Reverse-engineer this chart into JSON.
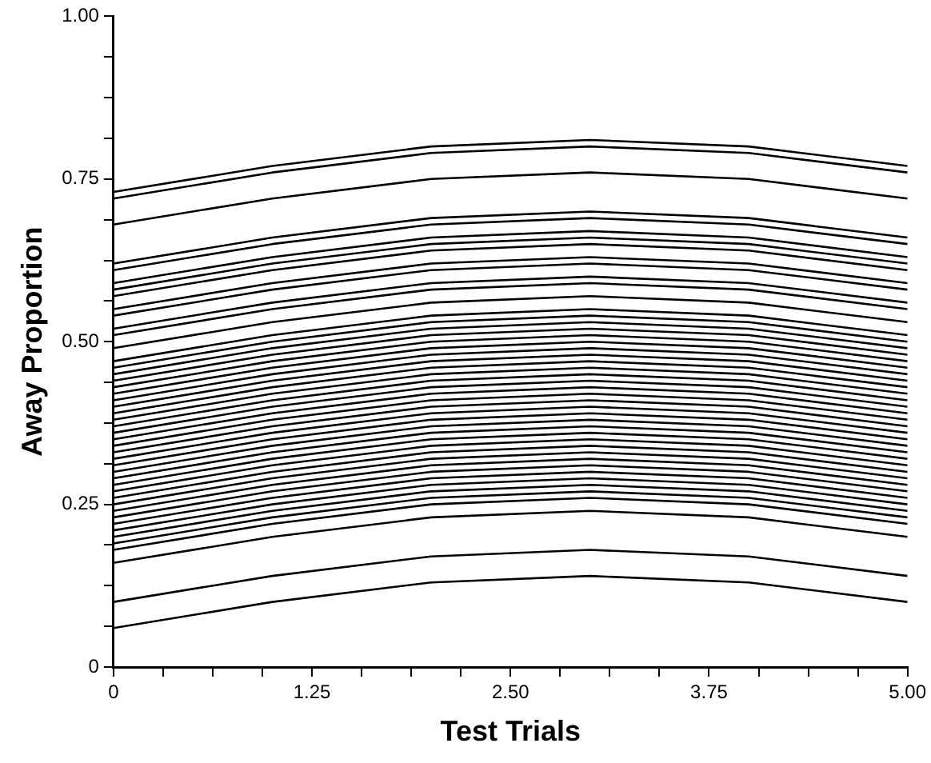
{
  "chart_data": {
    "type": "line",
    "xlabel": "Test Trials",
    "ylabel": "Away Proportion",
    "x": [
      0,
      1,
      2,
      3,
      4,
      5
    ],
    "xlim": [
      0,
      5
    ],
    "xticks": [
      {
        "value": 0,
        "label": "0"
      },
      {
        "value": 0.3125,
        "label": null
      },
      {
        "value": 0.625,
        "label": null
      },
      {
        "value": 0.9375,
        "label": null
      },
      {
        "value": 1.25,
        "label": "1.25"
      },
      {
        "value": 1.5625,
        "label": null
      },
      {
        "value": 1.875,
        "label": null
      },
      {
        "value": 2.1875,
        "label": null
      },
      {
        "value": 2.5,
        "label": "2.50"
      },
      {
        "value": 2.8125,
        "label": null
      },
      {
        "value": 3.125,
        "label": null
      },
      {
        "value": 3.4375,
        "label": null
      },
      {
        "value": 3.75,
        "label": "3.75"
      },
      {
        "value": 4.0625,
        "label": null
      },
      {
        "value": 4.375,
        "label": null
      },
      {
        "value": 4.6875,
        "label": null
      },
      {
        "value": 5,
        "label": "5.00"
      }
    ],
    "ylim": [
      0,
      1
    ],
    "yticks": [
      {
        "value": 0,
        "label": "0"
      },
      {
        "value": 0.0625,
        "label": null
      },
      {
        "value": 0.125,
        "label": null
      },
      {
        "value": 0.1875,
        "label": null
      },
      {
        "value": 0.25,
        "label": "0.25"
      },
      {
        "value": 0.3125,
        "label": null
      },
      {
        "value": 0.375,
        "label": null
      },
      {
        "value": 0.4375,
        "label": null
      },
      {
        "value": 0.5,
        "label": "0.50"
      },
      {
        "value": 0.5625,
        "label": null
      },
      {
        "value": 0.625,
        "label": null
      },
      {
        "value": 0.6875,
        "label": null
      },
      {
        "value": 0.75,
        "label": "0.75"
      },
      {
        "value": 0.8125,
        "label": null
      },
      {
        "value": 0.875,
        "label": null
      },
      {
        "value": 0.9375,
        "label": null
      },
      {
        "value": 1,
        "label": "1.00"
      }
    ],
    "grid": false,
    "legend": false,
    "marker": "none",
    "line_style": "solid",
    "series": [
      {
        "color": "#000000",
        "values": [
          0.73,
          0.77,
          0.8,
          0.81,
          0.8,
          0.77
        ]
      },
      {
        "color": "#000000",
        "values": [
          0.72,
          0.76,
          0.79,
          0.8,
          0.79,
          0.76
        ]
      },
      {
        "color": "#000000",
        "values": [
          0.68,
          0.72,
          0.75,
          0.76,
          0.75,
          0.72
        ]
      },
      {
        "color": "#000000",
        "values": [
          0.62,
          0.66,
          0.69,
          0.7,
          0.69,
          0.66
        ]
      },
      {
        "color": "#000000",
        "values": [
          0.61,
          0.65,
          0.68,
          0.69,
          0.68,
          0.65
        ]
      },
      {
        "color": "#000000",
        "values": [
          0.59,
          0.63,
          0.66,
          0.67,
          0.66,
          0.63
        ]
      },
      {
        "color": "#000000",
        "values": [
          0.58,
          0.62,
          0.65,
          0.66,
          0.65,
          0.62
        ]
      },
      {
        "color": "#000000",
        "values": [
          0.57,
          0.61,
          0.64,
          0.65,
          0.64,
          0.61
        ]
      },
      {
        "color": "#000000",
        "values": [
          0.55,
          0.59,
          0.62,
          0.63,
          0.62,
          0.59
        ]
      },
      {
        "color": "#000000",
        "values": [
          0.54,
          0.58,
          0.61,
          0.62,
          0.61,
          0.58
        ]
      },
      {
        "color": "#000000",
        "values": [
          0.52,
          0.56,
          0.59,
          0.6,
          0.59,
          0.56
        ]
      },
      {
        "color": "#000000",
        "values": [
          0.51,
          0.55,
          0.58,
          0.59,
          0.58,
          0.55
        ]
      },
      {
        "color": "#000000",
        "values": [
          0.49,
          0.53,
          0.56,
          0.57,
          0.56,
          0.53
        ]
      },
      {
        "color": "#000000",
        "values": [
          0.47,
          0.51,
          0.54,
          0.55,
          0.54,
          0.51
        ]
      },
      {
        "color": "#000000",
        "values": [
          0.46,
          0.5,
          0.53,
          0.54,
          0.53,
          0.5
        ]
      },
      {
        "color": "#000000",
        "values": [
          0.45,
          0.49,
          0.52,
          0.53,
          0.52,
          0.49
        ]
      },
      {
        "color": "#000000",
        "values": [
          0.44,
          0.48,
          0.51,
          0.52,
          0.51,
          0.48
        ]
      },
      {
        "color": "#000000",
        "values": [
          0.43,
          0.47,
          0.5,
          0.51,
          0.5,
          0.47
        ]
      },
      {
        "color": "#000000",
        "values": [
          0.42,
          0.46,
          0.49,
          0.5,
          0.49,
          0.46
        ]
      },
      {
        "color": "#000000",
        "values": [
          0.41,
          0.45,
          0.48,
          0.49,
          0.48,
          0.45
        ]
      },
      {
        "color": "#000000",
        "values": [
          0.4,
          0.44,
          0.47,
          0.48,
          0.47,
          0.44
        ]
      },
      {
        "color": "#000000",
        "values": [
          0.39,
          0.43,
          0.46,
          0.47,
          0.46,
          0.43
        ]
      },
      {
        "color": "#000000",
        "values": [
          0.38,
          0.42,
          0.45,
          0.46,
          0.45,
          0.42
        ]
      },
      {
        "color": "#000000",
        "values": [
          0.37,
          0.41,
          0.44,
          0.45,
          0.44,
          0.41
        ]
      },
      {
        "color": "#000000",
        "values": [
          0.36,
          0.4,
          0.43,
          0.44,
          0.43,
          0.4
        ]
      },
      {
        "color": "#000000",
        "values": [
          0.35,
          0.39,
          0.42,
          0.43,
          0.42,
          0.39
        ]
      },
      {
        "color": "#000000",
        "values": [
          0.34,
          0.38,
          0.41,
          0.42,
          0.41,
          0.38
        ]
      },
      {
        "color": "#000000",
        "values": [
          0.33,
          0.37,
          0.4,
          0.41,
          0.4,
          0.37
        ]
      },
      {
        "color": "#000000",
        "values": [
          0.32,
          0.36,
          0.39,
          0.4,
          0.39,
          0.36
        ]
      },
      {
        "color": "#000000",
        "values": [
          0.31,
          0.35,
          0.38,
          0.39,
          0.38,
          0.35
        ]
      },
      {
        "color": "#000000",
        "values": [
          0.3,
          0.34,
          0.37,
          0.38,
          0.37,
          0.34
        ]
      },
      {
        "color": "#000000",
        "values": [
          0.29,
          0.33,
          0.36,
          0.37,
          0.36,
          0.33
        ]
      },
      {
        "color": "#000000",
        "values": [
          0.28,
          0.32,
          0.35,
          0.36,
          0.35,
          0.32
        ]
      },
      {
        "color": "#000000",
        "values": [
          0.27,
          0.31,
          0.34,
          0.35,
          0.34,
          0.31
        ]
      },
      {
        "color": "#000000",
        "values": [
          0.26,
          0.3,
          0.33,
          0.34,
          0.33,
          0.3
        ]
      },
      {
        "color": "#000000",
        "values": [
          0.25,
          0.29,
          0.32,
          0.33,
          0.32,
          0.29
        ]
      },
      {
        "color": "#000000",
        "values": [
          0.24,
          0.28,
          0.31,
          0.32,
          0.31,
          0.28
        ]
      },
      {
        "color": "#000000",
        "values": [
          0.23,
          0.27,
          0.3,
          0.31,
          0.3,
          0.27
        ]
      },
      {
        "color": "#000000",
        "values": [
          0.22,
          0.26,
          0.29,
          0.3,
          0.29,
          0.26
        ]
      },
      {
        "color": "#000000",
        "values": [
          0.21,
          0.25,
          0.28,
          0.29,
          0.28,
          0.25
        ]
      },
      {
        "color": "#000000",
        "values": [
          0.2,
          0.24,
          0.27,
          0.28,
          0.27,
          0.24
        ]
      },
      {
        "color": "#000000",
        "values": [
          0.19,
          0.23,
          0.26,
          0.27,
          0.26,
          0.23
        ]
      },
      {
        "color": "#000000",
        "values": [
          0.18,
          0.22,
          0.25,
          0.26,
          0.25,
          0.22
        ]
      },
      {
        "color": "#000000",
        "values": [
          0.16,
          0.2,
          0.23,
          0.24,
          0.23,
          0.2
        ]
      },
      {
        "color": "#000000",
        "values": [
          0.1,
          0.14,
          0.17,
          0.18,
          0.17,
          0.14
        ]
      },
      {
        "color": "#000000",
        "values": [
          0.06,
          0.1,
          0.13,
          0.14,
          0.13,
          0.1
        ]
      }
    ]
  }
}
